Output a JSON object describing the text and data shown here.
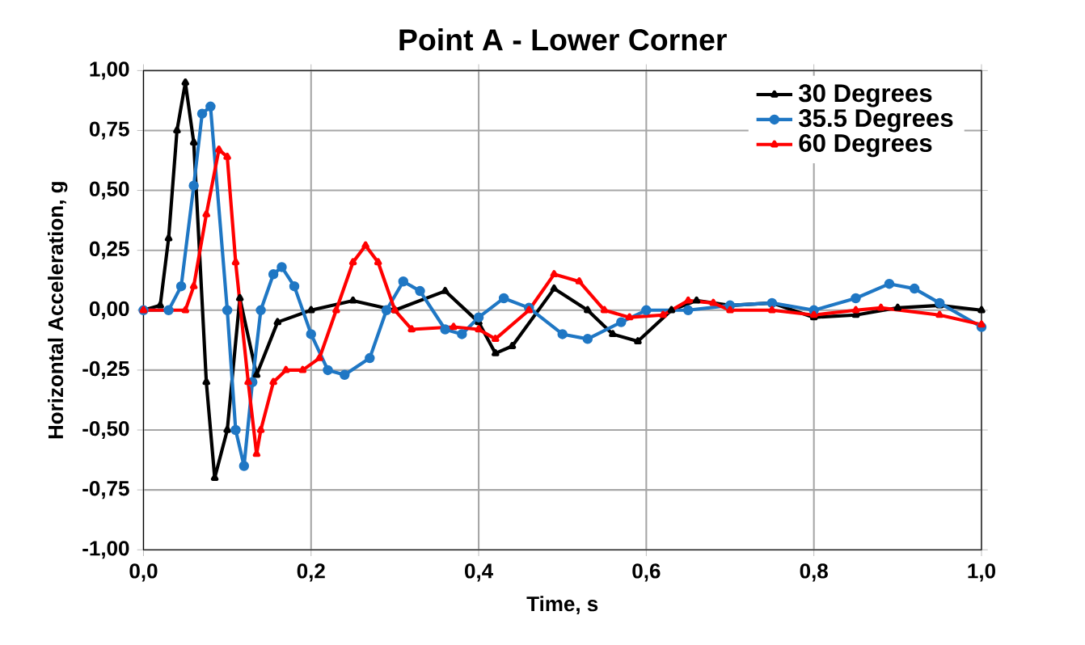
{
  "chart_data": {
    "type": "line",
    "title": "Point A - Lower Corner",
    "xlabel": "Time, s",
    "ylabel": "Horizontal Acceleration, g",
    "xlim": [
      0,
      1
    ],
    "ylim": [
      -1,
      1
    ],
    "xticks": [
      {
        "value": 0,
        "label": "0,0"
      },
      {
        "value": 0.2,
        "label": "0,2"
      },
      {
        "value": 0.4,
        "label": "0,4"
      },
      {
        "value": 0.6,
        "label": "0,6"
      },
      {
        "value": 0.8,
        "label": "0,8"
      },
      {
        "value": 1,
        "label": "1,0"
      }
    ],
    "yticks": [
      {
        "value": -1,
        "label": "-1,00"
      },
      {
        "value": -0.75,
        "label": "-0,75"
      },
      {
        "value": -0.5,
        "label": "-0,50"
      },
      {
        "value": -0.25,
        "label": "-0,25"
      },
      {
        "value": 0,
        "label": "0,00"
      },
      {
        "value": 0.25,
        "label": "0,25"
      },
      {
        "value": 0.5,
        "label": "0,50"
      },
      {
        "value": 0.75,
        "label": "0,75"
      },
      {
        "value": 1,
        "label": "1,00"
      }
    ],
    "grid": true,
    "legend": "top right",
    "series": [
      {
        "name": "30 Degrees",
        "color": "#000000",
        "marker": "triangle",
        "x": [
          0,
          0.02,
          0.03,
          0.04,
          0.05,
          0.06,
          0.075,
          0.085,
          0.1,
          0.115,
          0.135,
          0.16,
          0.2,
          0.25,
          0.3,
          0.36,
          0.4,
          0.42,
          0.44,
          0.49,
          0.53,
          0.56,
          0.59,
          0.63,
          0.66,
          0.7,
          0.75,
          0.8,
          0.85,
          0.9,
          0.95,
          1.0
        ],
        "values": [
          0,
          0.02,
          0.3,
          0.75,
          0.95,
          0.7,
          -0.3,
          -0.7,
          -0.5,
          0.05,
          -0.27,
          -0.05,
          0,
          0.04,
          0,
          0.08,
          -0.05,
          -0.18,
          -0.15,
          0.09,
          0,
          -0.1,
          -0.13,
          0,
          0.04,
          0.02,
          0.03,
          -0.03,
          -0.02,
          0.01,
          0.02,
          0
        ]
      },
      {
        "name": "35.5 Degrees",
        "color": "#1f77c4",
        "marker": "circle",
        "x": [
          0,
          0.03,
          0.045,
          0.06,
          0.07,
          0.08,
          0.1,
          0.11,
          0.12,
          0.13,
          0.14,
          0.155,
          0.165,
          0.18,
          0.2,
          0.22,
          0.24,
          0.27,
          0.29,
          0.31,
          0.33,
          0.36,
          0.38,
          0.4,
          0.43,
          0.46,
          0.5,
          0.53,
          0.57,
          0.6,
          0.65,
          0.7,
          0.75,
          0.8,
          0.85,
          0.89,
          0.92,
          0.95,
          1.0
        ],
        "values": [
          0,
          0,
          0.1,
          0.52,
          0.82,
          0.85,
          0,
          -0.5,
          -0.65,
          -0.3,
          0,
          0.15,
          0.18,
          0.1,
          -0.1,
          -0.25,
          -0.27,
          -0.2,
          0,
          0.12,
          0.08,
          -0.08,
          -0.1,
          -0.03,
          0.05,
          0.01,
          -0.1,
          -0.12,
          -0.05,
          0,
          0,
          0.02,
          0.03,
          0,
          0.05,
          0.11,
          0.09,
          0.03,
          -0.07
        ]
      },
      {
        "name": "60 Degrees",
        "color": "#ff0000",
        "marker": "triangle",
        "x": [
          0,
          0.05,
          0.06,
          0.075,
          0.09,
          0.1,
          0.11,
          0.125,
          0.135,
          0.14,
          0.155,
          0.17,
          0.19,
          0.21,
          0.23,
          0.25,
          0.265,
          0.28,
          0.3,
          0.32,
          0.37,
          0.4,
          0.42,
          0.46,
          0.49,
          0.52,
          0.55,
          0.58,
          0.62,
          0.65,
          0.68,
          0.7,
          0.75,
          0.8,
          0.85,
          0.88,
          0.95,
          1.0
        ],
        "values": [
          0,
          0,
          0.1,
          0.4,
          0.67,
          0.64,
          0.2,
          -0.3,
          -0.6,
          -0.5,
          -0.3,
          -0.25,
          -0.25,
          -0.2,
          0,
          0.2,
          0.27,
          0.2,
          0,
          -0.08,
          -0.07,
          -0.08,
          -0.12,
          0,
          0.15,
          0.12,
          0,
          -0.03,
          -0.02,
          0.04,
          0.03,
          0,
          0,
          -0.02,
          0,
          0.01,
          -0.02,
          -0.06
        ]
      }
    ]
  }
}
